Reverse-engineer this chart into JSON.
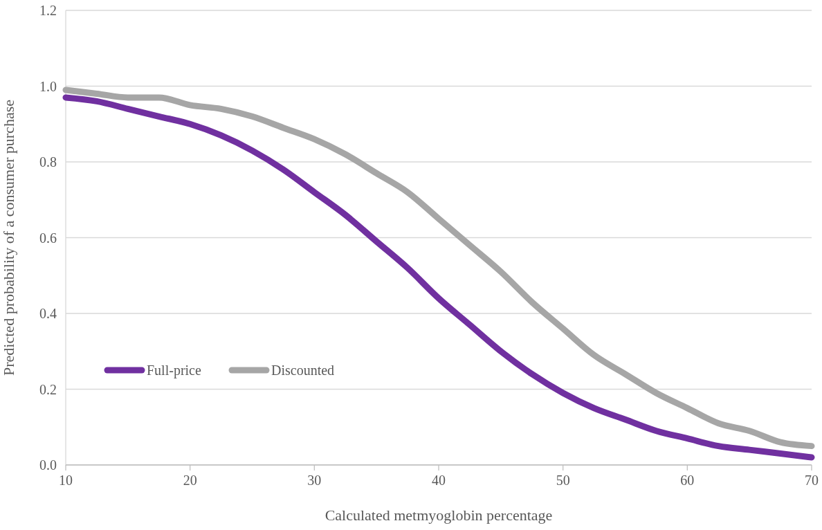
{
  "chart_data": {
    "type": "line",
    "xlabel": "Calculated metmyoglobin percentage",
    "ylabel": "Predicted probability of a consumer purchase",
    "x": [
      10,
      12.5,
      15,
      17.5,
      20,
      22.5,
      25,
      27.5,
      30,
      32.5,
      35,
      37.5,
      40,
      42.5,
      45,
      47.5,
      50,
      52.5,
      55,
      57.5,
      60,
      62.5,
      65,
      67.5,
      70
    ],
    "series": [
      {
        "name": "Full-price",
        "color": "#7030a0",
        "values": [
          0.97,
          0.96,
          0.94,
          0.92,
          0.9,
          0.87,
          0.83,
          0.78,
          0.72,
          0.66,
          0.59,
          0.52,
          0.44,
          0.37,
          0.3,
          0.24,
          0.19,
          0.15,
          0.12,
          0.09,
          0.07,
          0.05,
          0.04,
          0.03,
          0.02
        ]
      },
      {
        "name": "Discounted",
        "color": "#a6a6a6",
        "values": [
          0.99,
          0.98,
          0.97,
          0.97,
          0.95,
          0.94,
          0.92,
          0.89,
          0.86,
          0.82,
          0.77,
          0.72,
          0.65,
          0.58,
          0.51,
          0.43,
          0.36,
          0.29,
          0.24,
          0.19,
          0.15,
          0.11,
          0.09,
          0.06,
          0.05
        ]
      }
    ],
    "xlim": [
      10,
      70
    ],
    "xticks": [
      10,
      20,
      30,
      40,
      50,
      60,
      70
    ],
    "ylim": [
      0,
      1.2
    ],
    "yticks": [
      {
        "value": 0,
        "label": "0.0"
      },
      {
        "value": 0.2,
        "label": "0.2"
      },
      {
        "value": 0.4,
        "label": "0.4"
      },
      {
        "value": 0.6,
        "label": "0.6"
      },
      {
        "value": 0.8,
        "label": "0.8"
      },
      {
        "value": 1,
        "label": "1.0"
      },
      {
        "value": 1.2,
        "label": "1.2"
      }
    ],
    "grid": "y",
    "legend": "bottom left",
    "marker": "none",
    "line_style": "solid"
  }
}
